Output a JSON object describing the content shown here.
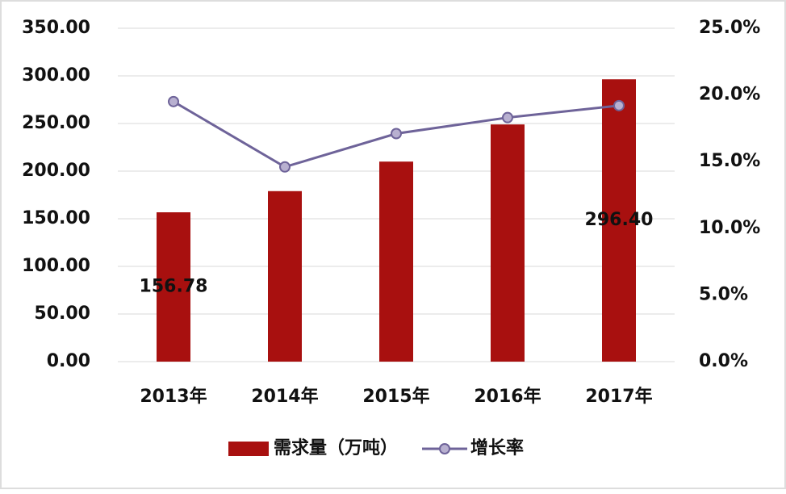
{
  "chart_data": {
    "type": "bar-line",
    "categories": [
      "2013年",
      "2014年",
      "2015年",
      "2016年",
      "2017年"
    ],
    "series": [
      {
        "name": "需求量（万吨）",
        "type": "bar",
        "color": "#a8100f",
        "values": [
          156.78,
          179,
          210,
          249,
          296.4
        ],
        "value_labels": [
          "156.78",
          null,
          null,
          null,
          "296.40"
        ]
      },
      {
        "name": "增长率",
        "type": "line",
        "axis": "y2",
        "color": "#6e6399",
        "values": [
          19.5,
          14.6,
          17.1,
          18.3,
          19.2
        ]
      }
    ],
    "ylim": [
      0,
      350
    ],
    "yticks": [
      {
        "value": 0,
        "label": "0.00"
      },
      {
        "value": 50,
        "label": "50.00"
      },
      {
        "value": 100,
        "label": "100.00"
      },
      {
        "value": 150,
        "label": "150.00"
      },
      {
        "value": 200,
        "label": "200.00"
      },
      {
        "value": 250,
        "label": "250.00"
      },
      {
        "value": 300,
        "label": "300.00"
      },
      {
        "value": 350,
        "label": "350.00"
      }
    ],
    "y2lim": [
      0,
      25
    ],
    "y2ticks": [
      {
        "value": 0,
        "label": "0.0%"
      },
      {
        "value": 5,
        "label": "5.0%"
      },
      {
        "value": 10,
        "label": "10.0%"
      },
      {
        "value": 15,
        "label": "15.0%"
      },
      {
        "value": 20,
        "label": "20.0%"
      },
      {
        "value": 25,
        "label": "25.0%"
      }
    ],
    "grid": true,
    "legend": "bottom"
  }
}
